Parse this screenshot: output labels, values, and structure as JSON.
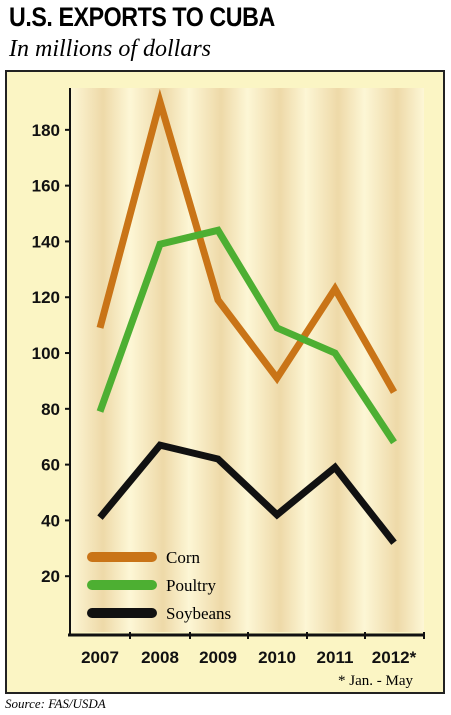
{
  "header": {
    "title": "U.S. EXPORTS TO CUBA",
    "subtitle": "In millions of dollars"
  },
  "footer": {
    "source": "Source: FAS/USDA"
  },
  "chart_data": {
    "type": "line",
    "title": "U.S. EXPORTS TO CUBA",
    "subtitle": "In millions of dollars",
    "categories": [
      "2007",
      "2008",
      "2009",
      "2010",
      "2011",
      "2012*"
    ],
    "series": [
      {
        "name": "Corn",
        "color": "#c97417",
        "values": [
          109,
          190,
          119,
          91,
          123,
          86
        ]
      },
      {
        "name": "Poultry",
        "color": "#4daf32",
        "values": [
          79,
          139,
          144,
          109,
          100,
          68
        ]
      },
      {
        "name": "Soybeans",
        "color": "#111111",
        "values": [
          41,
          67,
          62,
          42,
          59,
          32
        ]
      }
    ],
    "yticks": [
      20,
      40,
      60,
      80,
      100,
      120,
      140,
      160,
      180
    ],
    "ylim": [
      0,
      195
    ],
    "legend": "bottom-left",
    "annotation": "* Jan. - May",
    "colors": {
      "background": "#fbf5c4",
      "band_dark": "#eed9a8",
      "band_light": "#fdf7d6"
    }
  }
}
